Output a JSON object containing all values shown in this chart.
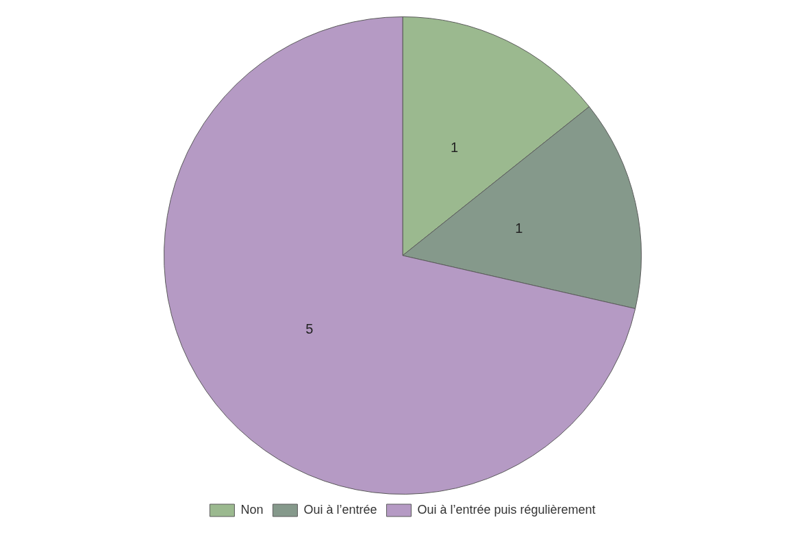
{
  "chart_data": {
    "type": "pie",
    "categories": [
      "Non",
      "Oui à l’entrée",
      "Oui à l’entrée puis régulièrement"
    ],
    "values": [
      1,
      1,
      5
    ],
    "colors": [
      "#9bb98f",
      "#85998b",
      "#b59ac4"
    ],
    "data_labels": true,
    "legend": "bottom"
  }
}
